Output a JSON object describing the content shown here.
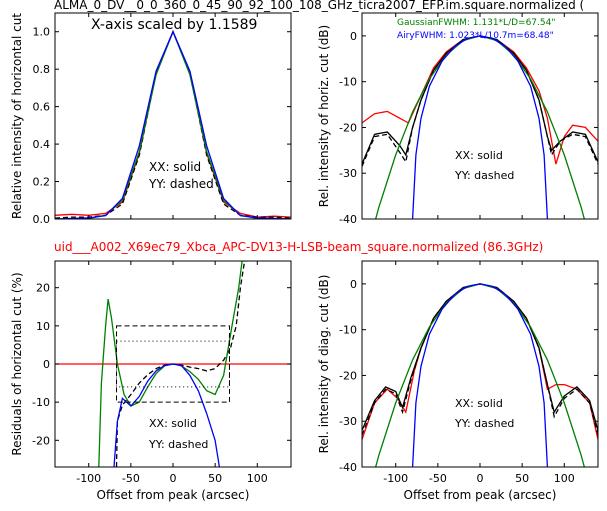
{
  "figure": {
    "title": "ALMA_0_DV__0_0_360_0_45_90_92_100_108_GHz_ticra2007_EFP.im.square.normalized (",
    "subtitle": "uid___A002_X69ec79_Xbca_APC-DV13-H-LSB-beam_square.normalized (86.3GHz)",
    "colors": {
      "xx": "#ff0000",
      "yy_black": "#000000",
      "gaussian": "#008000",
      "airy": "#0000ff",
      "subtitle": "#ff0000"
    }
  },
  "chart_data": [
    {
      "id": "top_left",
      "type": "line",
      "ylabel": "Relative intensity of horizontal cut",
      "xlabel": "",
      "xlim": [
        -140,
        140
      ],
      "ylim": [
        0.0,
        1.1
      ],
      "xticks": [
        -100,
        -50,
        0,
        50,
        100
      ],
      "yticks": [
        0.0,
        0.2,
        0.4,
        0.6,
        0.8,
        1.0
      ],
      "yticklabels": [
        "0.0",
        "0.2",
        "0.4",
        "0.6",
        "0.8",
        "1.0"
      ],
      "annotations": [
        "X-axis scaled by 1.1589",
        "XX: solid",
        "YY: dashed"
      ],
      "series": [
        {
          "color": "red",
          "style": "solid",
          "x": [
            -140,
            -120,
            -100,
            -80,
            -60,
            -40,
            -20,
            0,
            20,
            40,
            60,
            80,
            100,
            120,
            140
          ],
          "y": [
            0.02,
            0.025,
            0.02,
            0.03,
            0.09,
            0.35,
            0.78,
            1.0,
            0.78,
            0.35,
            0.09,
            0.03,
            0.01,
            0.015,
            0.01
          ]
        },
        {
          "color": "black",
          "style": "dashed",
          "x": [
            -140,
            -120,
            -100,
            -80,
            -60,
            -40,
            -20,
            0,
            20,
            40,
            60,
            80,
            100,
            120,
            140
          ],
          "y": [
            0.005,
            0.01,
            0.01,
            0.02,
            0.08,
            0.34,
            0.78,
            1.0,
            0.78,
            0.34,
            0.08,
            0.02,
            0.01,
            0.01,
            0.005
          ]
        },
        {
          "color": "green",
          "style": "solid",
          "x": [
            -140,
            -120,
            -100,
            -80,
            -60,
            -40,
            -20,
            0,
            20,
            40,
            60,
            80,
            100,
            120,
            140
          ],
          "y": [
            0.0,
            0.0,
            0.003,
            0.02,
            0.1,
            0.36,
            0.77,
            1.0,
            0.77,
            0.36,
            0.1,
            0.02,
            0.003,
            0.0,
            0.0
          ]
        },
        {
          "color": "blue",
          "style": "solid",
          "x": [
            -140,
            -120,
            -100,
            -80,
            -60,
            -40,
            -20,
            0,
            20,
            40,
            60,
            80,
            100,
            120,
            140
          ],
          "y": [
            0.0,
            0.003,
            0.006,
            0.018,
            0.11,
            0.39,
            0.79,
            1.0,
            0.79,
            0.39,
            0.11,
            0.018,
            0.006,
            0.003,
            0.0
          ]
        }
      ]
    },
    {
      "id": "top_right",
      "type": "line",
      "ylabel": "Rel. intensity of horiz. cut (dB)",
      "xlabel": "",
      "xlim": [
        -140,
        140
      ],
      "ylim": [
        -40,
        5
      ],
      "xticks": [
        -100,
        -50,
        0,
        50,
        100
      ],
      "yticks": [
        -40,
        -30,
        -20,
        -10,
        0
      ],
      "yticklabels": [
        "-40",
        "-30",
        "-20",
        "-10",
        "0"
      ],
      "annotations": [
        "XX: solid",
        "YY: dashed"
      ],
      "legend": [
        {
          "text": "GaussianFWHM: 1.131*L/D=67.54\"",
          "color": "green"
        },
        {
          "text": "AiryFWHM: 1.023*L/10.7m=68.48\"",
          "color": "blue"
        }
      ],
      "series": [
        {
          "color": "red",
          "style": "solid",
          "x": [
            -140,
            -125,
            -110,
            -95,
            -85,
            -70,
            -55,
            -40,
            -20,
            0,
            20,
            40,
            55,
            70,
            80,
            90,
            100,
            110,
            125,
            140
          ],
          "y": [
            -19,
            -17,
            -16.5,
            -18,
            -19,
            -13,
            -7,
            -3.5,
            -0.8,
            0,
            -0.8,
            -3.5,
            -7,
            -12,
            -18,
            -28,
            -22,
            -19.5,
            -20,
            -23
          ]
        },
        {
          "color": "black",
          "style": "dashed",
          "x": [
            -140,
            -125,
            -110,
            -95,
            -88,
            -80,
            -70,
            -55,
            -40,
            -20,
            0,
            20,
            40,
            55,
            70,
            80,
            85,
            95,
            110,
            125,
            140
          ],
          "y": [
            -28.5,
            -22,
            -21.5,
            -25.5,
            -27.5,
            -20,
            -14,
            -7.5,
            -3.8,
            -0.8,
            0,
            -0.8,
            -3.8,
            -7.5,
            -14,
            -22,
            -26,
            -23,
            -21.5,
            -22,
            -28
          ]
        },
        {
          "color": "black",
          "style": "solid",
          "x": [
            -140,
            -125,
            -110,
            -95,
            -88,
            -80,
            -70,
            -55,
            -40,
            -20,
            0,
            20,
            40,
            55,
            70,
            80,
            85,
            95,
            110,
            125,
            140
          ],
          "y": [
            -28,
            -21.5,
            -21,
            -24,
            -26,
            -20,
            -14,
            -7.5,
            -3.8,
            -0.8,
            0,
            -0.8,
            -3.8,
            -7.5,
            -14,
            -22,
            -25,
            -23,
            -21,
            -21.5,
            -27.5
          ]
        },
        {
          "color": "green",
          "style": "solid",
          "x": [
            -140,
            -120,
            -100,
            -80,
            -60,
            -40,
            -20,
            0,
            20,
            40,
            60,
            80,
            100,
            120,
            140
          ],
          "y": [
            -51,
            -37.4,
            -26,
            -16.6,
            -9.4,
            -4.2,
            -1.04,
            0,
            -1.04,
            -4.2,
            -9.4,
            -16.6,
            -26,
            -37.4,
            -51
          ]
        },
        {
          "color": "blue",
          "style": "solid",
          "x": [
            -80,
            -76,
            -70,
            -60,
            -45,
            -30,
            -15,
            0,
            15,
            30,
            45,
            60,
            70,
            76,
            80
          ],
          "y": [
            -40,
            -26,
            -18,
            -11,
            -5.5,
            -2.3,
            -0.55,
            0,
            -0.55,
            -2.3,
            -5.5,
            -11,
            -18,
            -26,
            -40
          ]
        }
      ]
    },
    {
      "id": "bottom_left",
      "type": "line",
      "ylabel": "Residuals of horizontal cut (%)",
      "xlabel": "Offset from peak (arcsec)",
      "xlim": [
        -140,
        140
      ],
      "ylim": [
        -27,
        27
      ],
      "xticks": [
        -100,
        -50,
        0,
        50,
        100
      ],
      "xticklabels": [
        "-100",
        "-50",
        "0",
        "50",
        "100"
      ],
      "yticks": [
        -20,
        -10,
        0,
        10,
        20
      ],
      "yticklabels": [
        "-20",
        "-10",
        "0",
        "10",
        "20"
      ],
      "annotations": [
        "XX: solid",
        "YY: dashed"
      ],
      "series": [
        {
          "color": "red",
          "style": "solid",
          "x": [
            -140,
            140
          ],
          "y": [
            0,
            0
          ]
        },
        {
          "color": "black",
          "style": "dashed",
          "x": [
            -67,
            -66,
            -60,
            -50,
            -40,
            -30,
            -20,
            -10,
            0,
            10,
            20,
            30,
            40,
            50,
            60,
            68,
            75,
            80,
            85
          ],
          "y": [
            -27,
            -15,
            -10.8,
            -8,
            -5,
            -2.8,
            -1.2,
            -0.3,
            0,
            -0.3,
            -0.8,
            -1.2,
            -1.8,
            -1.2,
            1,
            4,
            10,
            20,
            27
          ]
        },
        {
          "color": "green",
          "style": "solid",
          "x": [
            -88,
            -85,
            -80,
            -77,
            -73,
            -66,
            -58,
            -50,
            -40,
            -30,
            -20,
            -10,
            0,
            10,
            20,
            30,
            40,
            50,
            60,
            70,
            78,
            82,
            86,
            88
          ],
          "y": [
            -27,
            -5,
            10,
            17,
            12,
            0,
            -8,
            -11,
            -10,
            -6,
            -2.5,
            -0.5,
            0,
            -0.5,
            -2,
            -4,
            -7,
            -8,
            -3,
            10,
            20,
            27,
            27,
            27
          ]
        },
        {
          "color": "blue",
          "style": "solid",
          "x": [
            -70,
            -66,
            -60,
            -50,
            -40,
            -30,
            -20,
            -10,
            0,
            10,
            20,
            30,
            40,
            50,
            55
          ],
          "y": [
            -27,
            -15,
            -9,
            -11,
            -8.5,
            -4.5,
            -1.8,
            -0.4,
            0,
            -0.4,
            -3,
            -7,
            -13,
            -20,
            -27
          ]
        }
      ]
    },
    {
      "id": "bottom_right",
      "type": "line",
      "ylabel": "Rel. intensity of diag. cut (dB)",
      "xlabel": "Offset from peak (arcsec)",
      "xlim": [
        -140,
        140
      ],
      "ylim": [
        -40,
        5
      ],
      "xticks": [
        -100,
        -50,
        0,
        50,
        100
      ],
      "xticklabels": [
        "-100",
        "-50",
        "0",
        "50",
        "100"
      ],
      "yticks": [
        -40,
        -30,
        -20,
        -10,
        0
      ],
      "yticklabels": [
        "-40",
        "-30",
        "-20",
        "-10",
        "0"
      ],
      "annotations": [
        "XX: solid",
        "YY: dashed"
      ],
      "series": [
        {
          "color": "red",
          "style": "solid",
          "x": [
            -140,
            -125,
            -110,
            -98,
            -88,
            -78,
            -70,
            -55,
            -40,
            -20,
            0,
            20,
            40,
            55,
            70,
            80,
            90,
            100,
            115,
            130,
            140
          ],
          "y": [
            -34,
            -26,
            -23,
            -25,
            -28,
            -19,
            -14,
            -7.5,
            -3.8,
            -0.8,
            0,
            -0.8,
            -3.8,
            -7.5,
            -14,
            -23,
            -22,
            -22,
            -23,
            -26,
            -34
          ]
        },
        {
          "color": "black",
          "style": "dashed",
          "x": [
            -140,
            -125,
            -112,
            -100,
            -92,
            -82,
            -70,
            -55,
            -40,
            -20,
            0,
            20,
            40,
            55,
            70,
            80,
            88,
            100,
            115,
            130,
            140
          ],
          "y": [
            -33,
            -26,
            -23,
            -24,
            -28,
            -21,
            -14,
            -7.5,
            -3.8,
            -0.8,
            0,
            -0.8,
            -3.8,
            -7.5,
            -14,
            -22,
            -29,
            -25,
            -23,
            -26,
            -33
          ]
        },
        {
          "color": "black",
          "style": "solid",
          "x": [
            -140,
            -125,
            -112,
            -100,
            -92,
            -82,
            -70,
            -55,
            -40,
            -20,
            0,
            20,
            40,
            55,
            70,
            80,
            88,
            100,
            115,
            130,
            140
          ],
          "y": [
            -32,
            -25.5,
            -22.5,
            -23.5,
            -27,
            -20.5,
            -14,
            -7.5,
            -3.8,
            -0.8,
            0,
            -0.8,
            -3.8,
            -7.5,
            -14,
            -22,
            -28,
            -24.5,
            -22.5,
            -25.5,
            -32
          ]
        },
        {
          "color": "green",
          "style": "solid",
          "x": [
            -140,
            -120,
            -100,
            -80,
            -60,
            -40,
            -20,
            0,
            20,
            40,
            60,
            80,
            100,
            120,
            140
          ],
          "y": [
            -51,
            -37.4,
            -26,
            -16.6,
            -9.4,
            -4.2,
            -1.04,
            0,
            -1.04,
            -4.2,
            -9.4,
            -16.6,
            -26,
            -37.4,
            -51
          ]
        },
        {
          "color": "blue",
          "style": "solid",
          "x": [
            -80,
            -76,
            -70,
            -60,
            -45,
            -30,
            -15,
            0,
            15,
            30,
            45,
            60,
            70,
            76,
            80
          ],
          "y": [
            -40,
            -26,
            -18,
            -11,
            -5.5,
            -2.3,
            -0.55,
            0,
            -0.55,
            -2.3,
            -5.5,
            -11,
            -18,
            -26,
            -40
          ]
        }
      ]
    }
  ]
}
